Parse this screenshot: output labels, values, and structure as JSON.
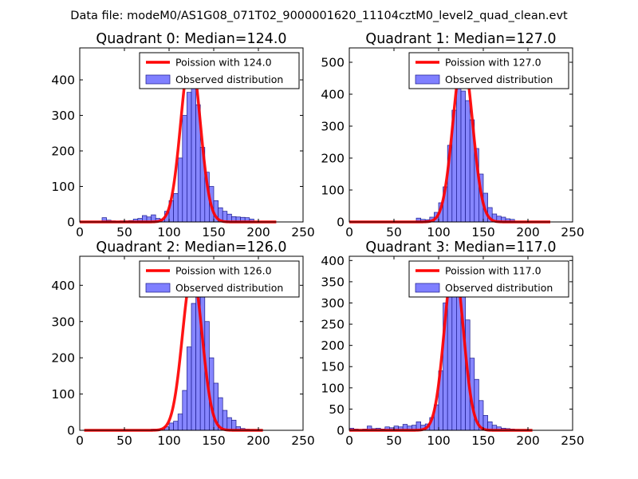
{
  "figure_title": "Data file: modeM0/AS1G08_071T02_9000001620_11104cztM0_level2_quad_clean.evt",
  "colors": {
    "curve": "#ff0000",
    "bar_fill": "#7f7fff",
    "bar_edge": "#1a1a8c",
    "axes": "#000000"
  },
  "chart_data": [
    {
      "type": "bar",
      "title": "Quadrant 0: Median=124.0",
      "median": 124.0,
      "legend": {
        "curve_label": "Poission with 124.0",
        "bars_label": "Observed distribution",
        "placement": "top-right"
      },
      "xlim": [
        0,
        250
      ],
      "ylim": [
        0,
        490
      ],
      "xticks": [
        0,
        50,
        100,
        150,
        200,
        250
      ],
      "yticks": [
        0,
        100,
        200,
        300,
        400
      ],
      "bin_width": 5,
      "bins_start": [
        25,
        30,
        35,
        40,
        45,
        50,
        55,
        60,
        65,
        70,
        75,
        80,
        85,
        90,
        95,
        100,
        105,
        110,
        115,
        120,
        125,
        130,
        135,
        140,
        145,
        150,
        155,
        160,
        165,
        170,
        175,
        180,
        185,
        190,
        195
      ],
      "values": [
        12,
        5,
        3,
        2,
        3,
        3,
        4,
        8,
        10,
        18,
        14,
        20,
        10,
        8,
        30,
        60,
        80,
        180,
        300,
        365,
        390,
        330,
        210,
        140,
        100,
        60,
        40,
        30,
        22,
        15,
        14,
        13,
        12,
        8,
        0
      ],
      "curve_peak": 470,
      "curve_sigma": 10.8,
      "curve_range": [
        0,
        220
      ]
    },
    {
      "type": "bar",
      "title": "Quadrant 1: Median=127.0",
      "median": 127.0,
      "legend": {
        "curve_label": "Poission with 127.0",
        "bars_label": "Observed distribution",
        "placement": "top-right"
      },
      "xlim": [
        0,
        250
      ],
      "ylim": [
        0,
        545
      ],
      "xticks": [
        0,
        50,
        100,
        150,
        200,
        250
      ],
      "yticks": [
        0,
        100,
        200,
        300,
        400,
        500
      ],
      "bin_width": 5,
      "bins_start": [
        75,
        80,
        85,
        90,
        95,
        100,
        105,
        110,
        115,
        120,
        125,
        130,
        135,
        140,
        145,
        150,
        155,
        160,
        165,
        170,
        175,
        180
      ],
      "values": [
        12,
        8,
        7,
        15,
        30,
        60,
        110,
        240,
        350,
        430,
        410,
        380,
        320,
        230,
        150,
        90,
        45,
        25,
        18,
        15,
        10,
        8
      ],
      "curve_peak": 515,
      "curve_sigma": 11.0,
      "curve_range": [
        0,
        225
      ]
    },
    {
      "type": "bar",
      "title": "Quadrant 2: Median=126.0",
      "median": 126.0,
      "legend": {
        "curve_label": "Poission with 126.0",
        "bars_label": "Observed distribution",
        "placement": "top-right"
      },
      "xlim": [
        0,
        250
      ],
      "ylim": [
        0,
        480
      ],
      "xticks": [
        0,
        50,
        100,
        150,
        200,
        250
      ],
      "yticks": [
        0,
        100,
        200,
        300,
        400
      ],
      "bin_width": 5,
      "bins_start": [
        80,
        85,
        90,
        95,
        100,
        105,
        110,
        115,
        120,
        125,
        130,
        135,
        140,
        145,
        150,
        155,
        160,
        165,
        170,
        175,
        180,
        185,
        190,
        195,
        200
      ],
      "values": [
        3,
        2,
        5,
        10,
        20,
        25,
        45,
        110,
        230,
        350,
        410,
        380,
        300,
        200,
        130,
        90,
        55,
        35,
        28,
        10,
        5,
        3,
        2,
        1,
        1
      ],
      "curve_peak": 435,
      "curve_sigma": 11.0,
      "curve_range": [
        5,
        205
      ]
    },
    {
      "type": "bar",
      "title": "Quadrant 3: Median=117.0",
      "median": 117.0,
      "legend": {
        "curve_label": "Poission with 117.0",
        "bars_label": "Observed distribution",
        "placement": "top-right"
      },
      "xlim": [
        0,
        250
      ],
      "ylim": [
        0,
        410
      ],
      "xticks": [
        0,
        50,
        100,
        150,
        200,
        250
      ],
      "yticks": [
        0,
        50,
        100,
        150,
        200,
        250,
        300,
        350,
        400
      ],
      "bin_width": 5,
      "bins_start": [
        0,
        5,
        10,
        15,
        20,
        25,
        30,
        35,
        40,
        45,
        50,
        55,
        60,
        65,
        70,
        75,
        80,
        85,
        90,
        95,
        100,
        105,
        110,
        115,
        120,
        125,
        130,
        135,
        140,
        145,
        150,
        155,
        160,
        165,
        170,
        175,
        180,
        185,
        190,
        195
      ],
      "values": [
        5,
        3,
        2,
        3,
        10,
        4,
        5,
        3,
        8,
        6,
        10,
        8,
        14,
        10,
        12,
        20,
        12,
        15,
        30,
        60,
        140,
        300,
        340,
        370,
        355,
        330,
        260,
        170,
        120,
        70,
        35,
        20,
        12,
        8,
        5,
        4,
        3,
        2,
        1,
        1
      ],
      "curve_peak": 395,
      "curve_sigma": 10.6,
      "curve_range": [
        0,
        205
      ]
    }
  ]
}
